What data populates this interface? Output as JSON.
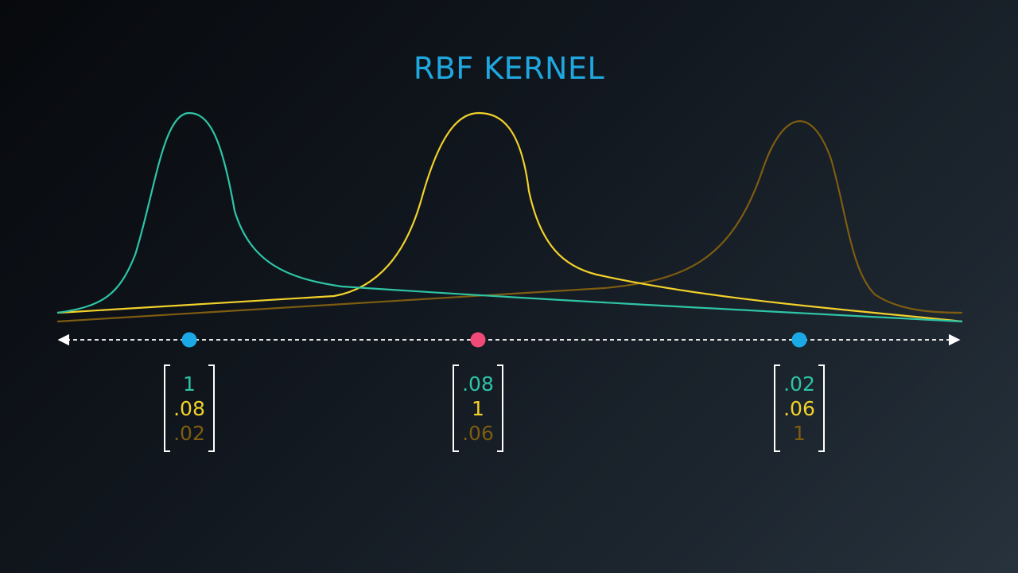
{
  "title": "RBF KERNEL",
  "colors": {
    "title": "#1fa8df",
    "kernel_1": "#2ec4a6",
    "kernel_2": "#f2d12b",
    "kernel_3": "#7e5c10",
    "point_blue": "#1aa9e6",
    "point_pink": "#f04a78",
    "axis": "#ffffff"
  },
  "points": [
    {
      "color": "point_blue"
    },
    {
      "color": "point_pink"
    },
    {
      "color": "point_blue"
    }
  ],
  "vectors": [
    {
      "values": [
        "1",
        ".08",
        ".02"
      ]
    },
    {
      "values": [
        ".08",
        "1",
        ".06"
      ]
    },
    {
      "values": [
        ".02",
        ".06",
        "1"
      ]
    }
  ]
}
